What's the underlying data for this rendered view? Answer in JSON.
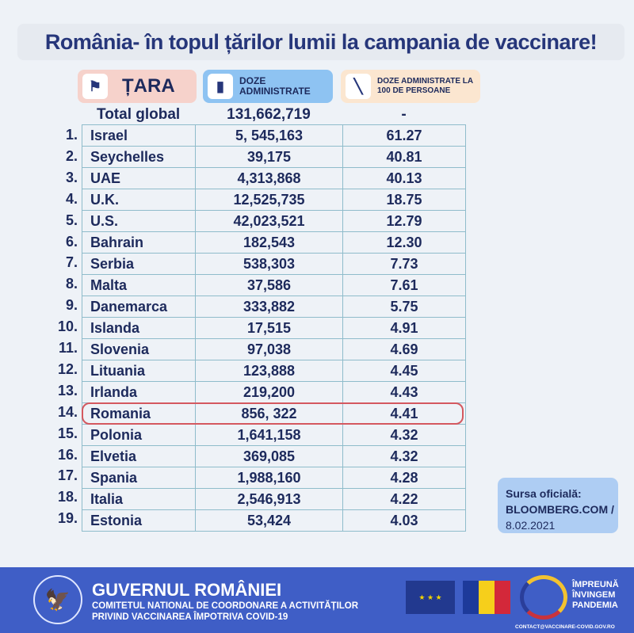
{
  "title": "România- în topul  țărilor lumii la campania de vaccinare!",
  "headers": {
    "country": "ȚARA",
    "doses": "DOZE ADMINISTRATE",
    "per100": "DOZE ADMINISTRATE LA 100 DE PERSOANE",
    "country_icon": "flags-icon",
    "doses_icon": "vaccine-vial-icon",
    "per100_icon": "syringe-icon"
  },
  "total": {
    "label": "Total global",
    "doses": "131,662,719",
    "per100": "-"
  },
  "rows": [
    {
      "rank": "1.",
      "country": "Israel",
      "doses": "5, 545,163",
      "per100": "61.27"
    },
    {
      "rank": "2.",
      "country": "Seychelles",
      "doses": "39,175",
      "per100": "40.81"
    },
    {
      "rank": "3.",
      "country": "UAE",
      "doses": "4,313,868",
      "per100": "40.13"
    },
    {
      "rank": "4.",
      "country": "U.K.",
      "doses": "12,525,735",
      "per100": "18.75"
    },
    {
      "rank": "5.",
      "country": "U.S.",
      "doses": "42,023,521",
      "per100": "12.79"
    },
    {
      "rank": "6.",
      "country": "Bahrain",
      "doses": "182,543",
      "per100": "12.30"
    },
    {
      "rank": "7.",
      "country": "Serbia",
      "doses": "538,303",
      "per100": "7.73"
    },
    {
      "rank": "8.",
      "country": "Malta",
      "doses": "37,586",
      "per100": "7.61"
    },
    {
      "rank": "9.",
      "country": "Danemarca",
      "doses": "333,882",
      "per100": "5.75"
    },
    {
      "rank": "10.",
      "country": "Islanda",
      "doses": "17,515",
      "per100": "4.91"
    },
    {
      "rank": "11.",
      "country": "Slovenia",
      "doses": "97,038",
      "per100": "4.69"
    },
    {
      "rank": "12.",
      "country": "Lituania",
      "doses": "123,888",
      "per100": "4.45"
    },
    {
      "rank": "13.",
      "country": "Irlanda",
      "doses": "219,200",
      "per100": "4.43"
    },
    {
      "rank": "14.",
      "country": "Romania",
      "doses": "856, 322",
      "per100": "4.41",
      "highlighted": true
    },
    {
      "rank": "15.",
      "country": "Polonia",
      "doses": "1,641,158",
      "per100": "4.32"
    },
    {
      "rank": "16.",
      "country": "Elvetia",
      "doses": "369,085",
      "per100": "4.32"
    },
    {
      "rank": "17.",
      "country": "Spania",
      "doses": "1,988,160",
      "per100": "4.28"
    },
    {
      "rank": "18.",
      "country": "Italia",
      "doses": "2,546,913",
      "per100": "4.22"
    },
    {
      "rank": "19.",
      "country": "Estonia",
      "doses": "53,424",
      "per100": "4.03"
    }
  ],
  "source": {
    "label": "Sursa oficială:",
    "site": "BLOOMBERG.COM /",
    "date": "8.02.2021"
  },
  "footer": {
    "gov": "GUVERNUL ROMÂNIEI",
    "committee_line1": "COMITETUL NATIONAL DE COORDONARE A ACTIVITĂȚILOR",
    "committee_line2": "PRIVIND VACCINAREA ÎMPOTRIVA COVID-19",
    "campaign_line1": "ÎMPREUNĂ",
    "campaign_line2": "ÎNVINGEM",
    "campaign_line3": "PANDEMIA",
    "contact": "CONTACT@VACCINARE-COVID.GOV.RO",
    "seal_text": "GUVERNUL ROMÂNIEI"
  },
  "colors": {
    "highlight": "#d4585f",
    "footer": "#3f5ec6",
    "text": "#1d2a5c"
  }
}
